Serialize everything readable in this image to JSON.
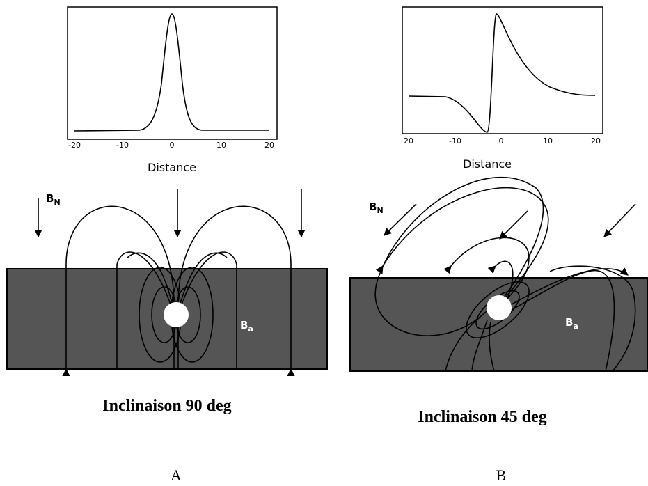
{
  "panels": [
    {
      "plot": {
        "xtick_labels": [
          "-20",
          "-10",
          "0",
          "10",
          "20"
        ],
        "xlabel": "Distance"
      },
      "field_label": {
        "main": "B",
        "sub": "N"
      },
      "body_label": {
        "main": "B",
        "sub": "a"
      },
      "caption": "Inclinaison 90 deg",
      "letter": "A"
    },
    {
      "plot": {
        "xtick_labels": [
          "20",
          "-10",
          "0",
          "10",
          "20"
        ],
        "xlabel": "Distance"
      },
      "field_label": {
        "main": "B",
        "sub": "N"
      },
      "body_label": {
        "main": "B",
        "sub": "a"
      },
      "caption": "Inclinaison 45 deg",
      "letter": "B"
    }
  ]
}
